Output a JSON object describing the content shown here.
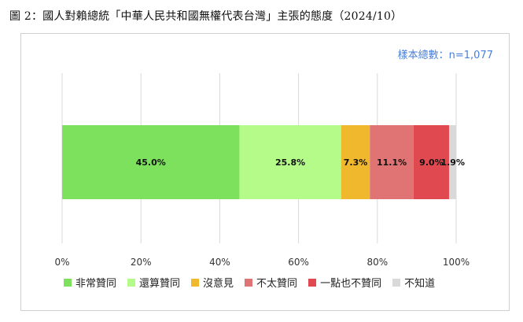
{
  "figure": {
    "title": "圖 2：國人對賴總統「中華人民共和國無權代表台灣」主張的態度（2024/10）",
    "sample_note": "樣本總數：n=1,077"
  },
  "chart_data": {
    "type": "bar",
    "orientation": "horizontal",
    "stacked": true,
    "categories": [
      ""
    ],
    "series": [
      {
        "name": "非常贊同",
        "values": [
          45.0
        ],
        "label": "45.0%",
        "color": "#7ee15e"
      },
      {
        "name": "還算贊同",
        "values": [
          25.8
        ],
        "label": "25.8%",
        "color": "#b5fb8a"
      },
      {
        "name": "沒意見",
        "values": [
          7.3
        ],
        "label": "7.3%",
        "color": "#f0b82c"
      },
      {
        "name": "不太贊同",
        "values": [
          11.1
        ],
        "label": "11.1%",
        "color": "#e07474"
      },
      {
        "name": "一點也不贊同",
        "values": [
          9.0
        ],
        "label": "9.0%",
        "color": "#e0494f"
      },
      {
        "name": "不知道",
        "values": [
          1.9
        ],
        "label": "1.9%",
        "color": "#d9d9d9"
      }
    ],
    "xlim": [
      0,
      100
    ],
    "xticks": [
      0,
      20,
      40,
      60,
      80,
      100
    ],
    "xtick_labels": [
      "0%",
      "20%",
      "40%",
      "60%",
      "80%",
      "100%"
    ],
    "grid": "vertical",
    "legend_position": "bottom"
  }
}
